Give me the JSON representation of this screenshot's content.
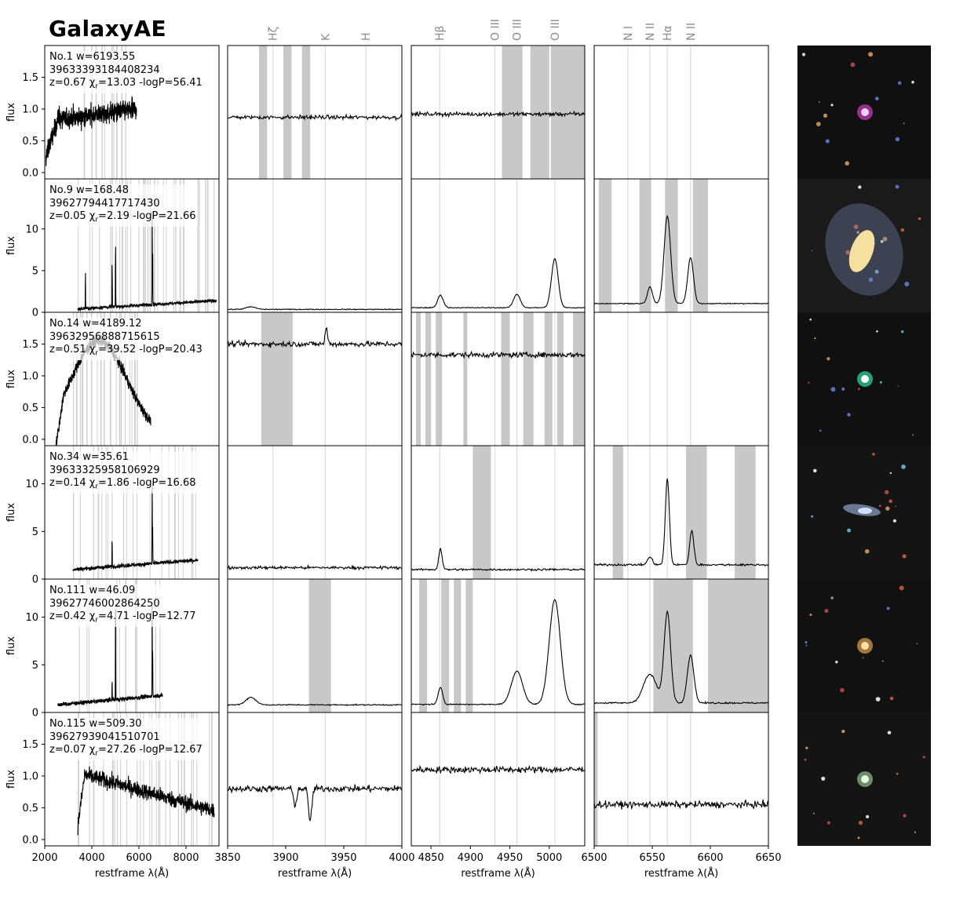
{
  "title": "GalaxyAE",
  "colors": {
    "spectrum": "#000000",
    "masked": "#c8c8c8",
    "line_marker": "#dcdcdc",
    "line_label": "#8c8c8c",
    "frame": "#000000"
  },
  "chart_data": {
    "type": "line",
    "ylabel": "flux",
    "xlabel": "restframe λ(Å)",
    "panels": [
      {
        "name": "full",
        "xlim": [
          2000,
          9400
        ],
        "xticks": [
          2000,
          4000,
          6000,
          8000
        ],
        "xticklabels": [
          "2000",
          "4000",
          "6000",
          "8000"
        ]
      },
      {
        "name": "zoom-ca",
        "xlim": [
          3850,
          4000
        ],
        "xticks": [
          3850,
          3900,
          3950,
          4000
        ],
        "xticklabels": [
          "3850",
          "3900",
          "3950",
          "4000"
        ],
        "lines": [
          {
            "label": "Hζ",
            "x": 3889
          },
          {
            "label": "K",
            "x": 3934
          },
          {
            "label": "H",
            "x": 3969
          }
        ]
      },
      {
        "name": "zoom-hb",
        "xlim": [
          4825,
          5045
        ],
        "xticks": [
          4850,
          4900,
          4950,
          5000
        ],
        "xticklabels": [
          "4850",
          "4900",
          "4950",
          "5000"
        ],
        "lines": [
          {
            "label": "Hβ",
            "x": 4861
          },
          {
            "label": "O III",
            "x": 4931
          },
          {
            "label": "O III",
            "x": 4959
          },
          {
            "label": "O III",
            "x": 5007
          }
        ]
      },
      {
        "name": "zoom-ha",
        "xlim": [
          6500,
          6650
        ],
        "xticks": [
          6500,
          6550,
          6600,
          6650
        ],
        "xticklabels": [
          "6500",
          "6550",
          "6600",
          "6650"
        ],
        "lines": [
          {
            "label": "N I",
            "x": 6529
          },
          {
            "label": "N II",
            "x": 6548
          },
          {
            "label": "Hα",
            "x": 6563
          },
          {
            "label": "N II",
            "x": 6583
          }
        ]
      }
    ],
    "rows": [
      {
        "no": "No.1",
        "w": "6193.55",
        "id": "39633393184408234",
        "z": "0.67",
        "chi": "13.03",
        "logp": "56.41",
        "ylim": [
          -0.1,
          2.0
        ],
        "yticks": [
          0.0,
          0.5,
          1.0,
          1.5
        ],
        "yticklabels": [
          "0.0",
          "0.5",
          "1.0",
          "1.5"
        ],
        "full": {
          "x0": 2050,
          "x1": 5900,
          "kind": "noisy_blue",
          "base": 0.85
        },
        "zoom": [
          {
            "base": 0.87,
            "noise": 0.03,
            "lines": [],
            "mask": [
              [
                3877,
                3884
              ],
              [
                3898,
                3905
              ],
              [
                3914,
                3921
              ]
            ]
          },
          {
            "base": 0.92,
            "noise": 0.03,
            "lines": [],
            "mask": [
              [
                4940,
                4966
              ],
              [
                4976,
                5000
              ],
              [
                5002,
                5045
              ]
            ]
          },
          null
        ],
        "thumb": {
          "kind": "point",
          "bg": "#101010",
          "obj": "#f0d0ff",
          "halo": "#d040c0"
        }
      },
      {
        "no": "No.9",
        "w": "168.48",
        "id": "39627794417717430",
        "z": "0.05",
        "chi": "2.19",
        "logp": "21.66",
        "ylim": [
          0,
          16
        ],
        "yticks": [
          0,
          5,
          10
        ],
        "yticklabels": [
          "0",
          "5",
          "10"
        ],
        "full": {
          "x0": 3400,
          "x1": 9300,
          "kind": "emission",
          "base": 0.4,
          "peaks": [
            [
              3727,
              4.5
            ],
            [
              4861,
              5.5
            ],
            [
              5007,
              8
            ],
            [
              6563,
              12
            ],
            [
              6583,
              7
            ]
          ]
        },
        "zoom": [
          {
            "base": 0.35,
            "noise": 0.05,
            "lines": [
              [
                3870,
                0.3,
                6
              ]
            ],
            "mask": []
          },
          {
            "base": 0.55,
            "noise": 0.05,
            "lines": [
              [
                4862,
                1.5,
                5
              ],
              [
                4959,
                1.6,
                6
              ],
              [
                5007,
                5.9,
                6
              ]
            ],
            "mask": []
          },
          {
            "base": 1.05,
            "noise": 0.05,
            "lines": [
              [
                6548,
                2.0,
                3
              ],
              [
                6563,
                10.5,
                4
              ],
              [
                6583,
                5.5,
                3.5
              ]
            ],
            "mask": [
              [
                6504,
                6515
              ],
              [
                6539,
                6549
              ],
              [
                6561,
                6572
              ],
              [
                6585,
                6598
              ]
            ]
          }
        ],
        "thumb": {
          "kind": "spiral",
          "bg": "#1a1a1a",
          "obj": "#f6e0a0",
          "halo": "#8090c0"
        }
      },
      {
        "no": "No.14",
        "w": "4189.12",
        "id": "39632956888715615",
        "z": "0.51",
        "chi": "39.52",
        "logp": "20.43",
        "ylim": [
          -0.1,
          2.0
        ],
        "yticks": [
          0.0,
          0.5,
          1.0,
          1.5
        ],
        "yticklabels": [
          "0.0",
          "0.5",
          "1.0",
          "1.5"
        ],
        "full": {
          "x0": 2300,
          "x1": 6500,
          "kind": "hump",
          "base": 1.5
        },
        "zoom": [
          {
            "base": 1.5,
            "noise": 0.04,
            "lines": [
              [
                3935,
                0.25,
                1.5
              ]
            ],
            "mask": [
              [
                3879,
                3906
              ]
            ]
          },
          {
            "base": 1.33,
            "noise": 0.04,
            "lines": [],
            "mask": [
              [
                4831,
                4837
              ],
              [
                4843,
                4850
              ],
              [
                4856,
                4864
              ],
              [
                4891,
                4896
              ],
              [
                4939,
                4950
              ],
              [
                4967,
                4980
              ],
              [
                4994,
                5004
              ],
              [
                5010,
                5018
              ],
              [
                5030,
                5045
              ]
            ]
          },
          null
        ],
        "thumb": {
          "kind": "point",
          "bg": "#101010",
          "obj": "#ffffff",
          "halo": "#30e0a0"
        }
      },
      {
        "no": "No.34",
        "w": "35.61",
        "id": "39633325958106929",
        "z": "0.14",
        "chi": "1.86",
        "logp": "16.68",
        "ylim": [
          0,
          14
        ],
        "yticks": [
          0,
          5,
          10
        ],
        "yticklabels": [
          "0",
          "5",
          "10"
        ],
        "full": {
          "x0": 3200,
          "x1": 8500,
          "kind": "emission",
          "base": 1.0,
          "peaks": [
            [
              4861,
              3
            ],
            [
              6563,
              9
            ],
            [
              6583,
              4
            ]
          ]
        },
        "zoom": [
          {
            "base": 1.2,
            "noise": 0.15,
            "lines": [],
            "mask": []
          },
          {
            "base": 1.0,
            "noise": 0.1,
            "lines": [
              [
                4862,
                2.2,
                3
              ]
            ],
            "mask": [
              [
                4903,
                4926
              ]
            ]
          },
          {
            "base": 1.5,
            "noise": 0.1,
            "lines": [
              [
                6548,
                0.8,
                3
              ],
              [
                6563,
                9.0,
                2.5
              ],
              [
                6584,
                3.6,
                2.5
              ]
            ],
            "mask": [
              [
                6516,
                6525
              ],
              [
                6579,
                6597
              ],
              [
                6621,
                6639
              ]
            ]
          }
        ],
        "thumb": {
          "kind": "edge",
          "bg": "#141414",
          "obj": "#d0e0ff",
          "halo": "#8090b0"
        }
      },
      {
        "no": "No.111",
        "w": "46.09",
        "id": "39627746002864250",
        "z": "0.42",
        "chi": "4.71",
        "logp": "12.77",
        "ylim": [
          0,
          14
        ],
        "yticks": [
          0,
          5,
          10
        ],
        "yticklabels": [
          "0",
          "5",
          "10"
        ],
        "full": {
          "x0": 2550,
          "x1": 7000,
          "kind": "emission",
          "base": 0.8,
          "peaks": [
            [
              4861,
              2
            ],
            [
              5007,
              11
            ],
            [
              6563,
              10
            ],
            [
              6583,
              5
            ]
          ]
        },
        "zoom": [
          {
            "base": 0.8,
            "noise": 0.06,
            "lines": [
              [
                3870,
                0.8,
                6
              ]
            ],
            "mask": [
              [
                3920,
                3939
              ]
            ]
          },
          {
            "base": 0.85,
            "noise": 0.06,
            "lines": [
              [
                4862,
                1.8,
                4
              ],
              [
                4959,
                3.5,
                10
              ],
              [
                5007,
                11,
                10
              ]
            ],
            "mask": [
              [
                4835,
                4845
              ],
              [
                4863,
                4873
              ],
              [
                4879,
                4888
              ],
              [
                4894,
                4903
              ]
            ]
          },
          {
            "base": 1.0,
            "noise": 0.08,
            "lines": [
              [
                6548,
                3.0,
                8
              ],
              [
                6563,
                9.5,
                4
              ],
              [
                6583,
                5.0,
                4
              ]
            ],
            "mask": [
              [
                6551,
                6585
              ],
              [
                6598,
                6650
              ]
            ]
          }
        ],
        "thumb": {
          "kind": "point",
          "bg": "#111111",
          "obj": "#ffe0a0",
          "halo": "#e0a050"
        }
      },
      {
        "no": "No.115",
        "w": "509.30",
        "id": "39627939041510701",
        "z": "0.07",
        "chi": "27.26",
        "logp": "12.67",
        "ylim": [
          -0.1,
          2.0
        ],
        "yticks": [
          0.0,
          0.5,
          1.0,
          1.5
        ],
        "yticklabels": [
          "0.0",
          "0.5",
          "1.0",
          "1.5"
        ],
        "full": {
          "x0": 3400,
          "x1": 9200,
          "kind": "red_noisy",
          "base": 0.9
        },
        "zoom": [
          {
            "base": 0.8,
            "noise": 0.05,
            "lines": [
              [
                3921,
                -0.5,
                2
              ],
              [
                3908,
                -0.25,
                2
              ]
            ],
            "mask": []
          },
          {
            "base": 1.1,
            "noise": 0.05,
            "lines": [],
            "mask": []
          },
          {
            "base": 0.55,
            "noise": 0.05,
            "lines": [],
            "mask": [
              [
                6500,
                6503
              ]
            ]
          }
        ],
        "thumb": {
          "kind": "point",
          "bg": "#141414",
          "obj": "#e8ffe0",
          "halo": "#90c090"
        }
      }
    ]
  }
}
